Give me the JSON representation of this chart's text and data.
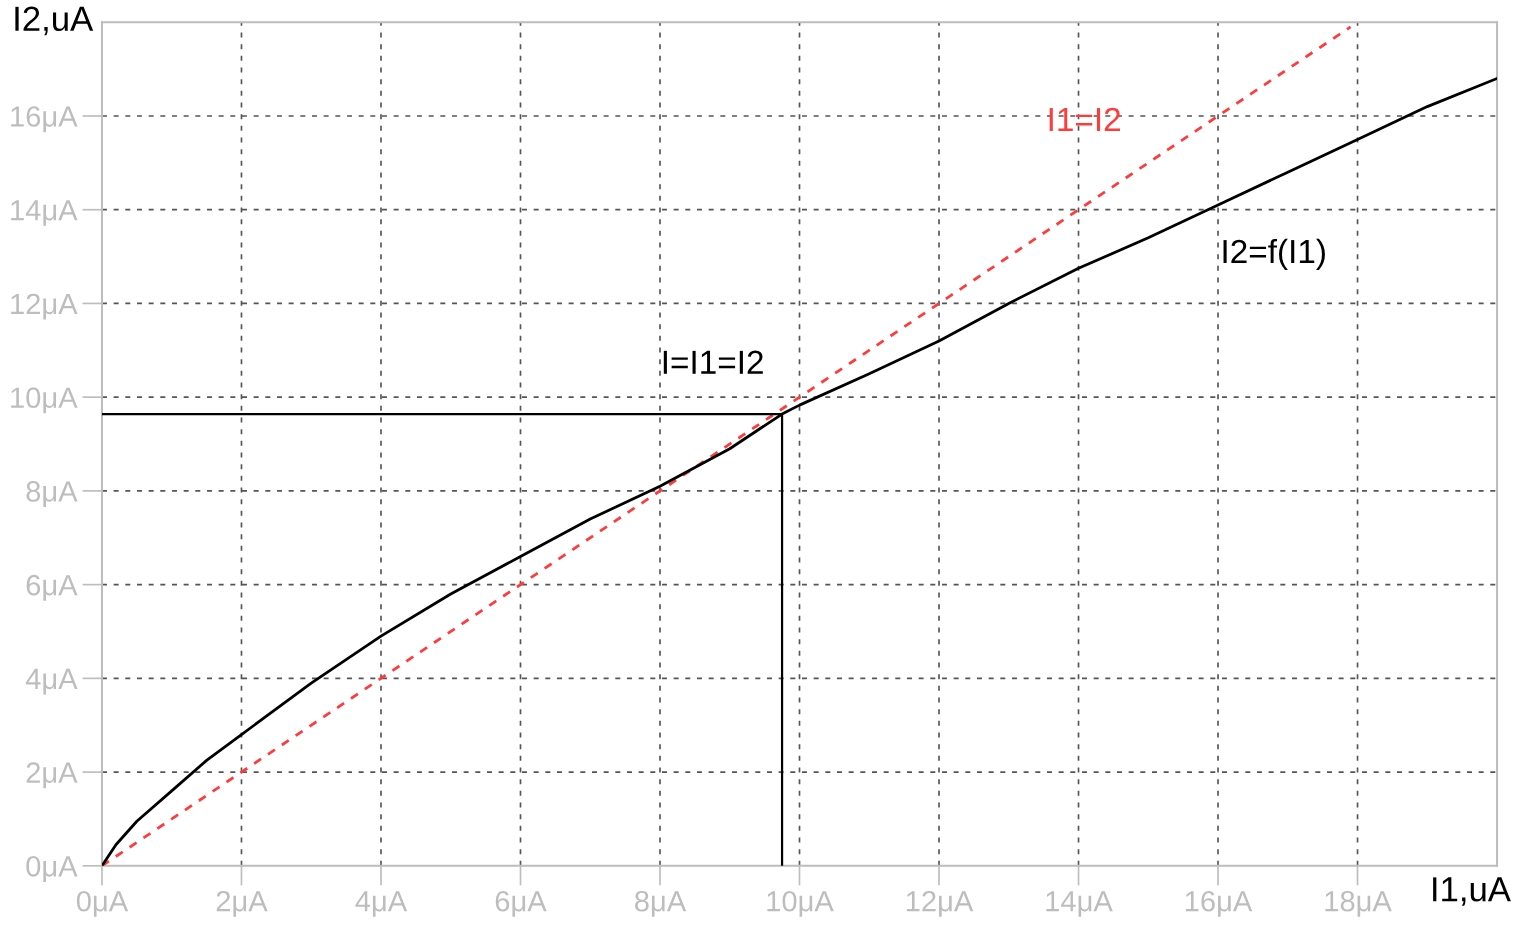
{
  "chart_data": {
    "type": "line",
    "xlabel": "I1,uA",
    "ylabel": "I2,uA",
    "xlim": [
      0,
      20
    ],
    "ylim": [
      0,
      18
    ],
    "xticks": [
      {
        "value": 0,
        "label": "0μA"
      },
      {
        "value": 2,
        "label": "2μA"
      },
      {
        "value": 4,
        "label": "4μA"
      },
      {
        "value": 6,
        "label": "6μA"
      },
      {
        "value": 8,
        "label": "8μA"
      },
      {
        "value": 10,
        "label": "10μA"
      },
      {
        "value": 12,
        "label": "12μA"
      },
      {
        "value": 14,
        "label": "14μA"
      },
      {
        "value": 16,
        "label": "16μA"
      },
      {
        "value": 18,
        "label": "18μA"
      }
    ],
    "yticks": [
      {
        "value": 0,
        "label": "0μA"
      },
      {
        "value": 2,
        "label": "2μA"
      },
      {
        "value": 4,
        "label": "4μA"
      },
      {
        "value": 6,
        "label": "6μA"
      },
      {
        "value": 8,
        "label": "8μA"
      },
      {
        "value": 10,
        "label": "10μA"
      },
      {
        "value": 12,
        "label": "12μA"
      },
      {
        "value": 14,
        "label": "14μA"
      },
      {
        "value": 16,
        "label": "16μA"
      }
    ],
    "grid": true,
    "legend": false,
    "series": [
      {
        "name": "I1=I2",
        "color": "#ff3b3b",
        "line_style": "dashed",
        "x": [
          0,
          17.9
        ],
        "values": [
          0,
          17.9
        ]
      },
      {
        "name": "I2=f(I1)",
        "color": "#000000",
        "line_style": "solid",
        "x": [
          0,
          0.2,
          0.5,
          1,
          1.5,
          2,
          3,
          4,
          5,
          6,
          7,
          8,
          9,
          9.75,
          10,
          11,
          12,
          13,
          14,
          15,
          16,
          17,
          18,
          19,
          20
        ],
        "values": [
          0,
          0.45,
          0.95,
          1.6,
          2.25,
          2.8,
          3.9,
          4.9,
          5.8,
          6.6,
          7.4,
          8.1,
          8.9,
          9.64,
          9.83,
          10.5,
          11.2,
          12.0,
          12.75,
          13.4,
          14.1,
          14.8,
          15.5,
          16.2,
          16.8
        ]
      },
      {
        "color": "#000000",
        "line_style": "solid",
        "x": [
          0,
          9.75,
          9.75
        ],
        "values": [
          9.64,
          9.64,
          0
        ]
      }
    ],
    "annotations": [
      {
        "text": "I=I1=I2",
        "x": 9.75,
        "y": 9.64
      }
    ]
  }
}
